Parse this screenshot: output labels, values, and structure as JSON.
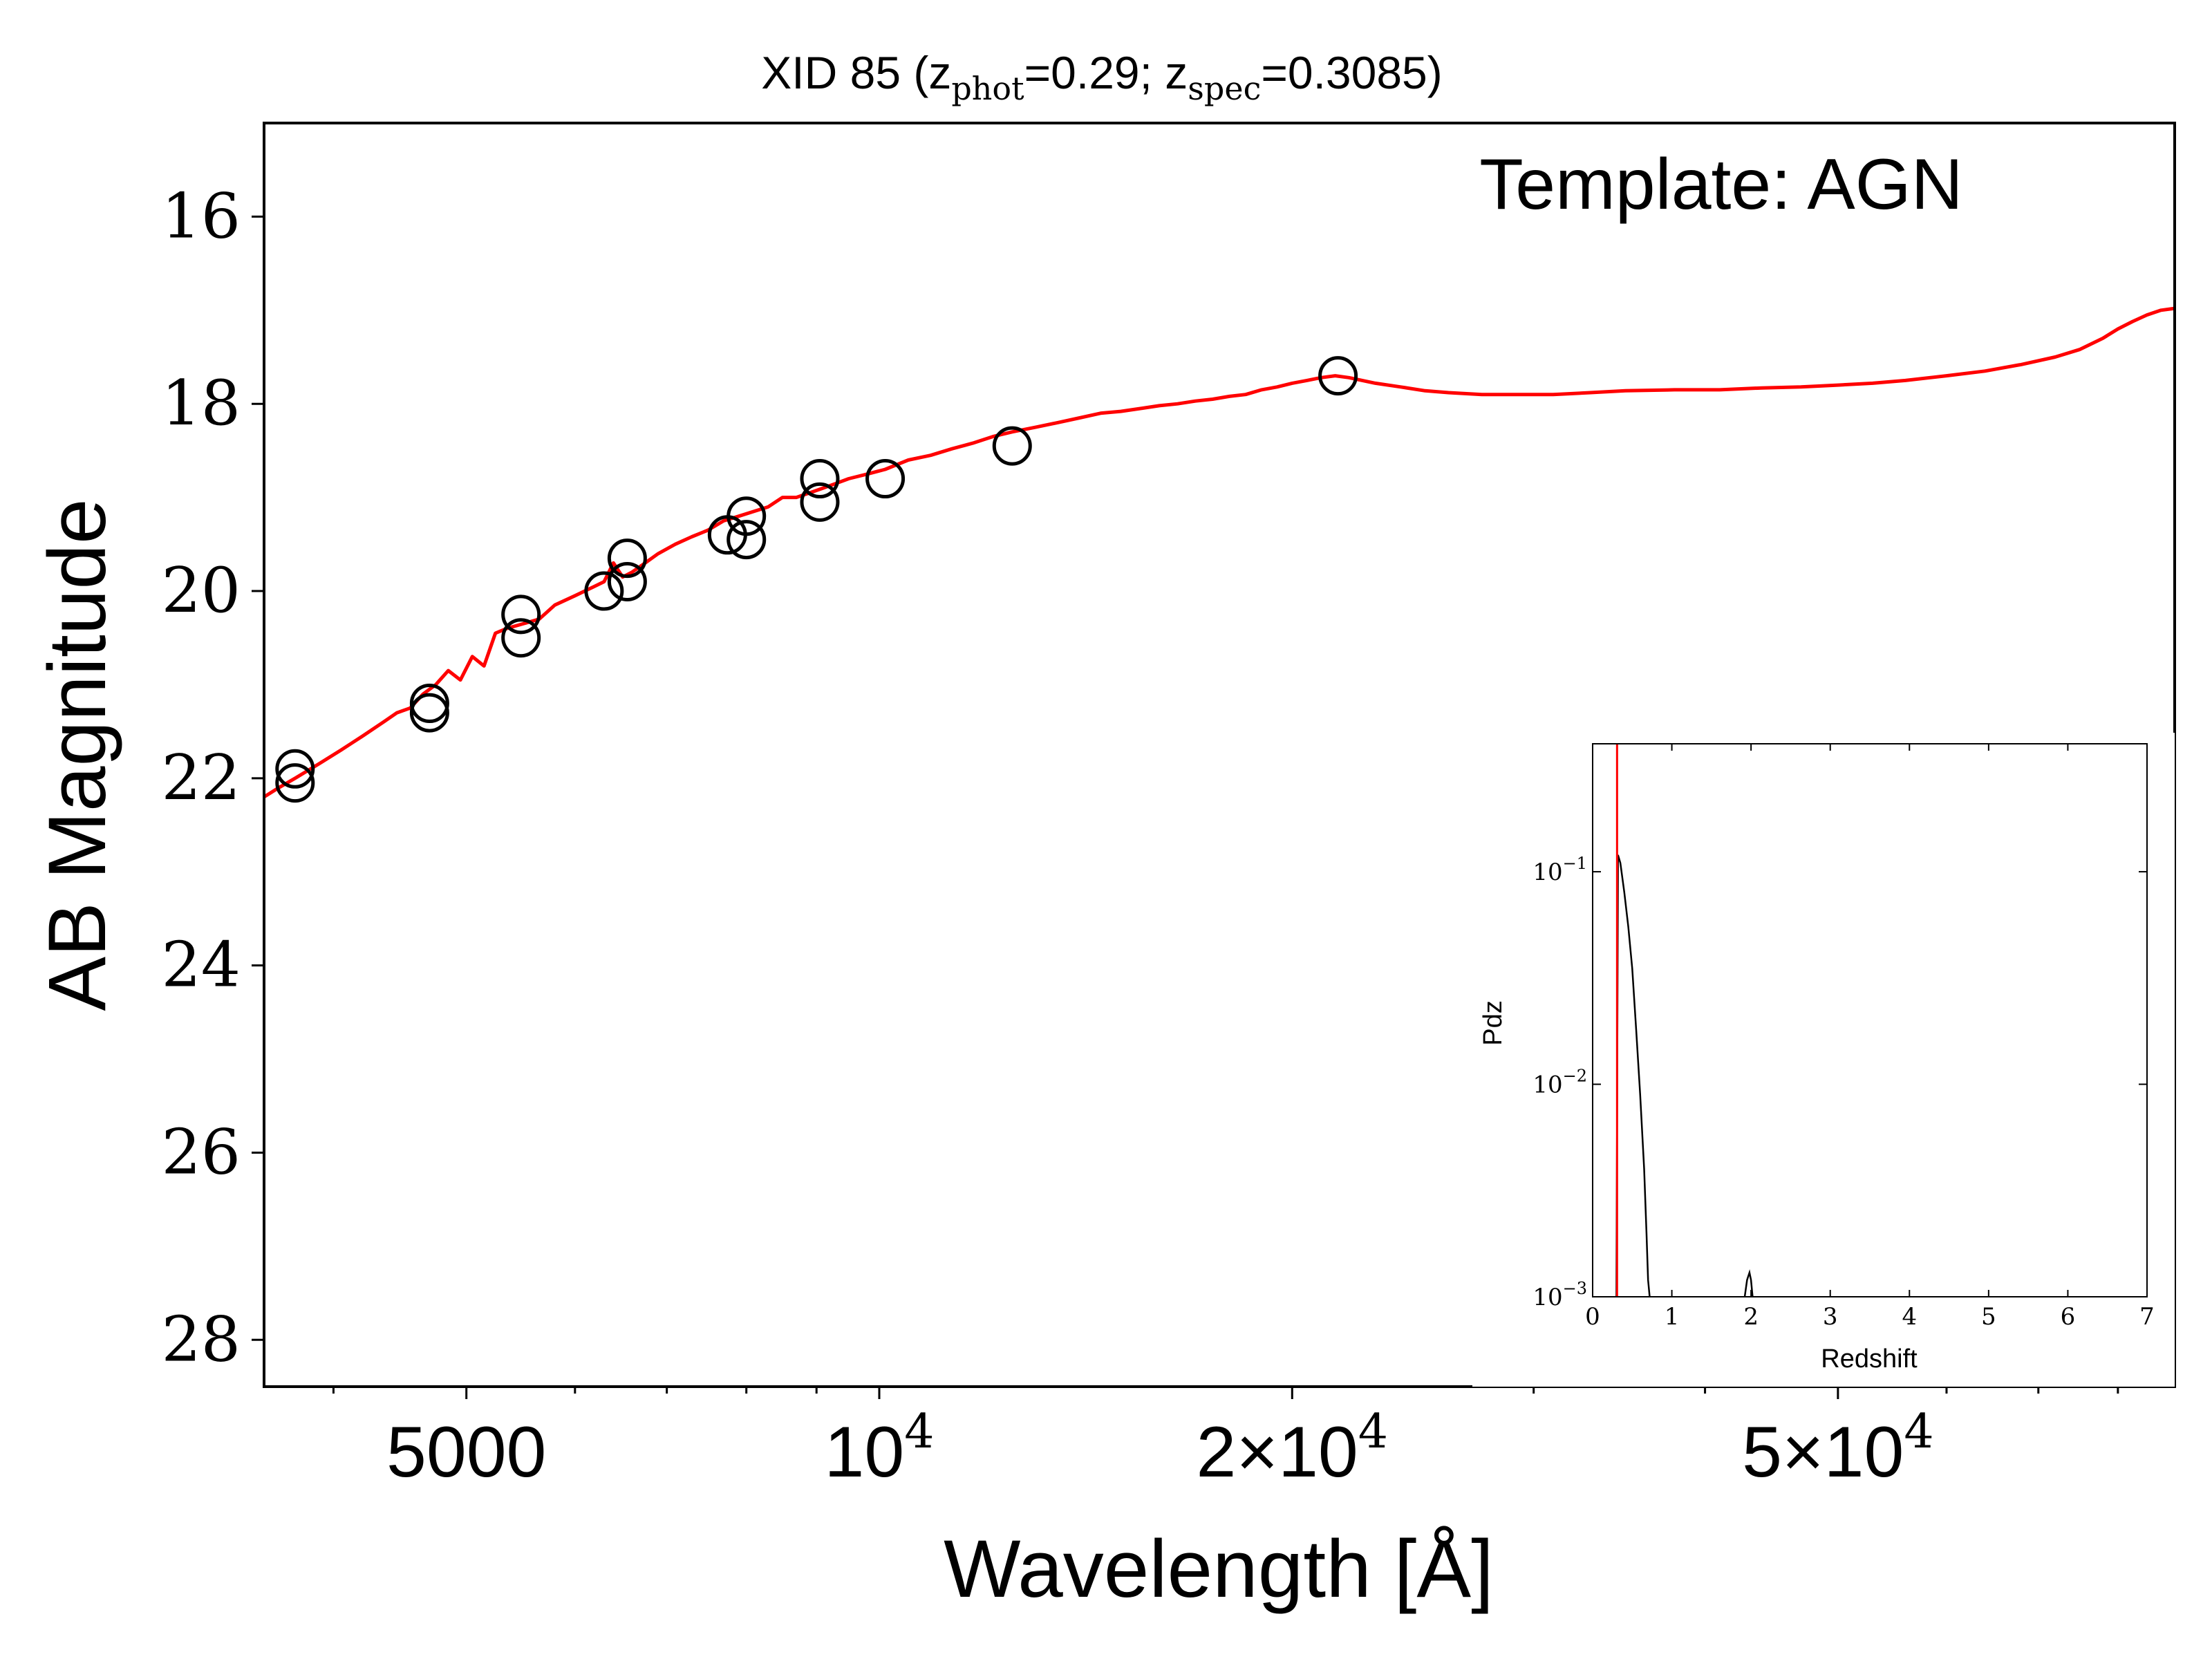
{
  "chart_data": [
    {
      "type": "line",
      "title_prefix": "XID 85 (z",
      "title_phot_sub": "phot",
      "title_mid": "=0.29; z",
      "title_spec_sub": "spec",
      "title_suffix": "=0.3085)",
      "annotation": "Template: AGN",
      "xlabel": "Wavelength [Å]",
      "ylabel": "AB Magnitude",
      "xscale": "log",
      "xlim": [
        3560,
        88000
      ],
      "ylim": [
        28.5,
        15.0
      ],
      "y_inverted": true,
      "xticks": [
        {
          "value": 5000,
          "label": "5000"
        },
        {
          "value": 10000,
          "base": "10",
          "exp": "4"
        },
        {
          "value": 20000,
          "base": "2×10",
          "exp": "4"
        },
        {
          "value": 50000,
          "base": "5×10",
          "exp": "4"
        }
      ],
      "yticks": [
        16,
        18,
        20,
        22,
        24,
        26,
        28
      ],
      "colors": {
        "model": "#ff0000",
        "photometry": "#000000"
      },
      "series": [
        {
          "kind": "model_line",
          "x": [
            3560,
            3650,
            3750,
            3900,
            4050,
            4200,
            4350,
            4450,
            4550,
            4650,
            4750,
            4850,
            4950,
            5050,
            5150,
            5250,
            5350,
            5500,
            5650,
            5800,
            6000,
            6200,
            6300,
            6400,
            6500,
            6600,
            6750,
            6900,
            7100,
            7300,
            7500,
            7700,
            7900,
            8100,
            8300,
            8500,
            8700,
            8900,
            9100,
            9300,
            9500,
            9800,
            10100,
            10500,
            10900,
            11300,
            11700,
            12100,
            12500,
            13000,
            13500,
            14000,
            14500,
            15000,
            15500,
            16000,
            16500,
            17000,
            17500,
            18000,
            18500,
            19000,
            19500,
            20000,
            20500,
            21000,
            21500,
            22000,
            22500,
            23000,
            24000,
            25000,
            26000,
            27500,
            29000,
            31000,
            33000,
            35000,
            38000,
            41000,
            44000,
            47000,
            50000,
            53000,
            56000,
            60000,
            64000,
            68000,
            72000,
            75000,
            78000,
            80000,
            82000,
            84000,
            86000,
            88000
          ],
          "y": [
            22.2,
            22.1,
            22.0,
            21.85,
            21.7,
            21.55,
            21.4,
            21.3,
            21.25,
            21.1,
            21.0,
            20.85,
            20.95,
            20.7,
            20.8,
            20.45,
            20.4,
            20.35,
            20.3,
            20.15,
            20.05,
            19.95,
            19.9,
            19.7,
            19.85,
            19.8,
            19.7,
            19.6,
            19.5,
            19.42,
            19.35,
            19.25,
            19.2,
            19.15,
            19.1,
            19.0,
            19.0,
            18.95,
            18.9,
            18.85,
            18.8,
            18.75,
            18.7,
            18.6,
            18.55,
            18.48,
            18.42,
            18.35,
            18.3,
            18.25,
            18.2,
            18.15,
            18.1,
            18.08,
            18.05,
            18.02,
            18.0,
            17.97,
            17.95,
            17.92,
            17.9,
            17.85,
            17.82,
            17.78,
            17.75,
            17.72,
            17.7,
            17.72,
            17.75,
            17.78,
            17.82,
            17.86,
            17.88,
            17.9,
            17.9,
            17.9,
            17.88,
            17.86,
            17.85,
            17.85,
            17.83,
            17.82,
            17.8,
            17.78,
            17.75,
            17.7,
            17.65,
            17.58,
            17.5,
            17.42,
            17.3,
            17.2,
            17.12,
            17.05,
            17.0,
            16.98
          ]
        },
        {
          "kind": "photometry",
          "x": [
            3750,
            3750,
            4700,
            4700,
            5480,
            5480,
            6300,
            6550,
            6550,
            7750,
            8000,
            8000,
            9050,
            9050,
            10100,
            12500,
            21600
          ],
          "y": [
            21.9,
            22.05,
            21.2,
            21.3,
            20.25,
            20.5,
            20.0,
            19.65,
            19.9,
            19.4,
            19.2,
            19.45,
            18.8,
            19.05,
            18.8,
            18.45,
            17.7
          ]
        }
      ]
    },
    {
      "type": "line",
      "xlabel": "Redshift",
      "ylabel": "Pdz",
      "xlim": [
        0,
        7
      ],
      "ylim": [
        0.001,
        0.4
      ],
      "yscale": "log",
      "xticks": [
        0,
        1,
        2,
        3,
        4,
        5,
        6,
        7
      ],
      "yticks": [
        {
          "value": 0.1,
          "base": "10",
          "exp": "−1"
        },
        {
          "value": 0.01,
          "base": "10",
          "exp": "−2"
        },
        {
          "value": 0.001,
          "base": "10",
          "exp": "−3"
        }
      ],
      "zspec_line": 0.3085,
      "colors": {
        "pdz": "#000000",
        "zspec": "#ff0000"
      },
      "series": [
        {
          "kind": "pdz",
          "x": [
            0.3,
            0.32,
            0.35,
            0.4,
            0.45,
            0.5,
            0.55,
            0.6,
            0.65,
            0.68,
            0.7,
            0.72
          ],
          "y": [
            0.001,
            0.12,
            0.11,
            0.08,
            0.055,
            0.035,
            0.018,
            0.009,
            0.004,
            0.002,
            0.0012,
            0.001
          ]
        },
        {
          "kind": "pdz",
          "x": [
            1.92,
            1.95,
            1.98,
            2.0,
            2.02
          ],
          "y": [
            0.001,
            0.0012,
            0.0013,
            0.0012,
            0.001
          ]
        }
      ]
    }
  ]
}
